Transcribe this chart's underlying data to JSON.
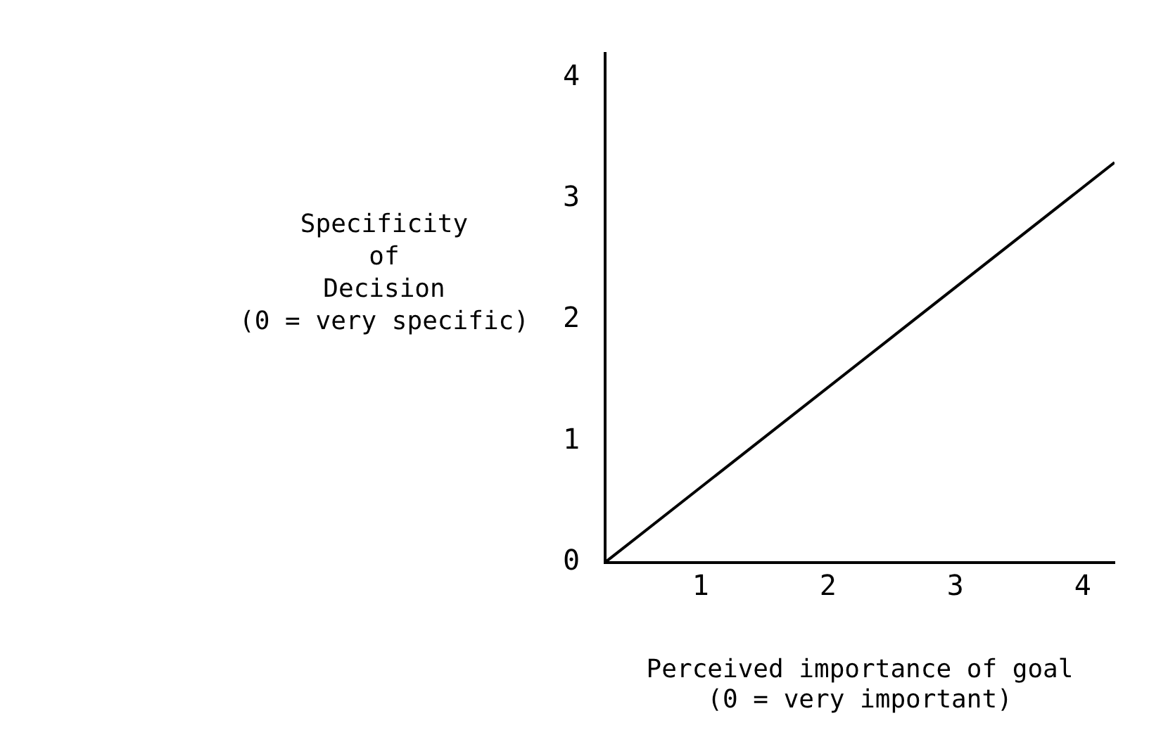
{
  "chart_data": {
    "type": "line",
    "xlabel": "Perceived importance of goal\n(0 = very important)",
    "ylabel": "Specificity\nof\nDecision\n(0 = very specific)",
    "x": [
      0.25,
      4.25
    ],
    "series": [
      {
        "color": "#000000",
        "values": [
          0,
          3.3
        ]
      }
    ],
    "xlim": [
      0.25,
      4.25
    ],
    "xticks": [
      1,
      2,
      3,
      4
    ],
    "ylim": [
      0,
      4.2
    ],
    "yticks": [
      0,
      1,
      2,
      3,
      4
    ],
    "grid": false,
    "legend": false,
    "marker": "none",
    "line_style": "solid"
  }
}
